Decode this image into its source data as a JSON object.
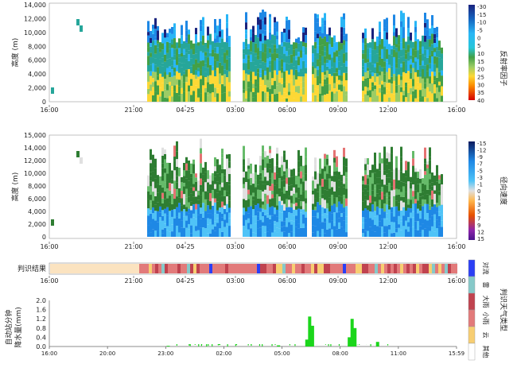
{
  "panel1": {
    "ylabel": "高度 (m)",
    "yticks": [
      "0",
      "2,000",
      "4,000",
      "6,000",
      "8,000",
      "10,000",
      "12,000",
      "14,000"
    ],
    "xticks": [
      "16:00",
      "21:00",
      "04-25",
      "03:00",
      "06:00",
      "09:00",
      "12:00",
      "16:00"
    ],
    "colorbar_label": "反射率因子",
    "colorbar_ticks": [
      "-30",
      "-15",
      "-10",
      "-5",
      "0",
      "5",
      "10",
      "15",
      "20",
      "25",
      "30",
      "35",
      "40"
    ]
  },
  "panel2": {
    "ylabel": "高度 (m)",
    "yticks": [
      "0",
      "2,000",
      "4,000",
      "6,000",
      "8,000",
      "10,000",
      "12,000",
      "14,000",
      "15,000"
    ],
    "xticks": [
      "16:00",
      "21:00",
      "04-25",
      "03:00",
      "06:00",
      "09:00",
      "12:00",
      "16:00"
    ],
    "colorbar_label": "径向速度",
    "colorbar_ticks": [
      "-15",
      "-12",
      "-9",
      "-7",
      "-5",
      "-3",
      "-1",
      "0",
      "1",
      "3",
      "5",
      "7",
      "9",
      "12",
      "15"
    ]
  },
  "panel3": {
    "label": "判识结果",
    "xticks": [
      "16:00",
      "21:00",
      "04-25",
      "03:00",
      "06:00",
      "09:00",
      "12:00",
      "16:00"
    ]
  },
  "panel4": {
    "ylabel_line1": "自动站分钟",
    "ylabel_line2": "降水量(mm)",
    "yticks": [
      "0.0",
      "0.4",
      "0.8",
      "1.2",
      "1.6",
      "2.0"
    ],
    "xticks": [
      "16:00",
      "20:00",
      "23:00",
      "02:00",
      "05:00",
      "08:00",
      "11:00",
      "15:59"
    ]
  },
  "legend": {
    "title": "判识天气类型",
    "items": [
      "对流",
      "雷",
      "大雨",
      "小雨",
      "云",
      "其他"
    ],
    "colors": [
      "#2b3ff5",
      "#86c9c9",
      "#c0434f",
      "#e27a7a",
      "#f7ce72",
      "#ffffff"
    ]
  },
  "chart_data": [
    {
      "type": "heatmap",
      "title": "",
      "ylabel": "高度 (m)",
      "ylim": [
        0,
        15000
      ],
      "x_range": [
        "16:00",
        "16:00"
      ],
      "colorbar": "反射率因子",
      "colorbar_range": [
        -30,
        40
      ]
    },
    {
      "type": "heatmap",
      "title": "",
      "ylabel": "高度 (m)",
      "ylim": [
        0,
        15000
      ],
      "x_range": [
        "16:00",
        "16:00"
      ],
      "colorbar": "径向速度",
      "colorbar_range": [
        -15,
        15
      ]
    },
    {
      "type": "bar",
      "title": "",
      "label": "判识结果",
      "categories": [
        "对流",
        "雷",
        "大雨",
        "小雨",
        "云",
        "其他"
      ]
    },
    {
      "type": "bar",
      "title": "",
      "ylabel": "自动站分钟 降水量(mm)",
      "ylim": [
        0,
        2.0
      ],
      "x": [
        "07:10",
        "07:20",
        "07:30",
        "09:40",
        "09:50",
        "10:00",
        "11:20",
        "05:30",
        "23:00"
      ],
      "values": [
        0.3,
        1.3,
        0.9,
        0.4,
        1.2,
        0.8,
        0.2,
        0.05,
        0.03
      ]
    }
  ]
}
